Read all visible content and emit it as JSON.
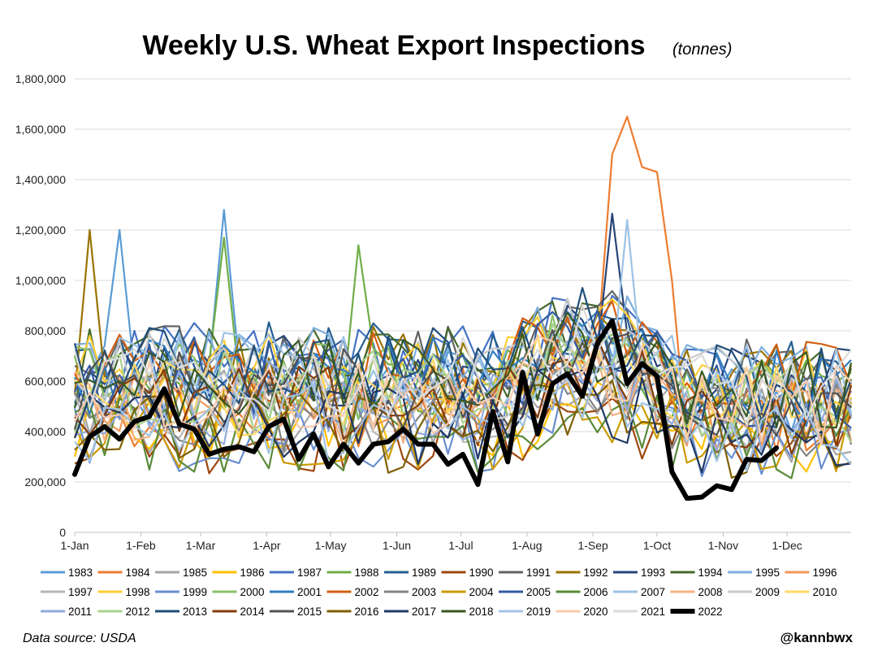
{
  "chart_data": {
    "type": "line",
    "title": "Weekly U.S. Wheat Export Inspections",
    "subtitle": "(tonnes)",
    "ylim": [
      0,
      1800000
    ],
    "y_ticks": [
      "0",
      "200,000",
      "400,000",
      "600,000",
      "800,000",
      "1,000,000",
      "1,200,000",
      "1,400,000",
      "1,600,000",
      "1,800,000"
    ],
    "y_tick_values": [
      0,
      200000,
      400000,
      600000,
      800000,
      1000000,
      1200000,
      1400000,
      1600000,
      1800000
    ],
    "x_ticks": [
      "1-Jan",
      "1-Feb",
      "1-Mar",
      "1-Apr",
      "1-May",
      "1-Jun",
      "1-Jul",
      "1-Aug",
      "1-Sep",
      "1-Oct",
      "1-Nov",
      "1-Dec"
    ],
    "x_tick_weeks": [
      0,
      4.43,
      8.43,
      12.86,
      17.14,
      21.57,
      25.86,
      30.29,
      34.71,
      39,
      43.43,
      47.71
    ],
    "weeks_shown": 53,
    "highlight": {
      "name": "2022",
      "color": "#000000",
      "values": [
        230000,
        380000,
        420000,
        370000,
        440000,
        460000,
        570000,
        430000,
        410000,
        310000,
        330000,
        340000,
        320000,
        420000,
        450000,
        290000,
        390000,
        260000,
        350000,
        275000,
        350000,
        360000,
        410000,
        350000,
        350000,
        270000,
        310000,
        190000,
        480000,
        280000,
        635000,
        390000,
        590000,
        630000,
        540000,
        750000,
        840000,
        590000,
        670000,
        620000,
        240000,
        135000,
        140000,
        185000,
        170000,
        290000,
        285000,
        335000
      ]
    },
    "series": [
      {
        "name": "1983",
        "color": "#5B9BD5"
      },
      {
        "name": "1984",
        "color": "#ED7D31"
      },
      {
        "name": "1985",
        "color": "#A5A5A5"
      },
      {
        "name": "1986",
        "color": "#FFC000"
      },
      {
        "name": "1987",
        "color": "#4472C4"
      },
      {
        "name": "1988",
        "color": "#70AD47"
      },
      {
        "name": "1989",
        "color": "#255E91"
      },
      {
        "name": "1990",
        "color": "#9E480E"
      },
      {
        "name": "1991",
        "color": "#636363"
      },
      {
        "name": "1992",
        "color": "#997300"
      },
      {
        "name": "1993",
        "color": "#264478"
      },
      {
        "name": "1994",
        "color": "#43682B"
      },
      {
        "name": "1995",
        "color": "#7CAFDD"
      },
      {
        "name": "1996",
        "color": "#F1975A"
      },
      {
        "name": "1997",
        "color": "#B7B7B7"
      },
      {
        "name": "1998",
        "color": "#FFCD33"
      },
      {
        "name": "1999",
        "color": "#698ED0"
      },
      {
        "name": "2000",
        "color": "#8CC168"
      },
      {
        "name": "2001",
        "color": "#327DC2"
      },
      {
        "name": "2002",
        "color": "#D26012"
      },
      {
        "name": "2003",
        "color": "#848484"
      },
      {
        "name": "2004",
        "color": "#CC9A00"
      },
      {
        "name": "2005",
        "color": "#335AA1"
      },
      {
        "name": "2006",
        "color": "#5A8A39"
      },
      {
        "name": "2007",
        "color": "#9DC3E6"
      },
      {
        "name": "2008",
        "color": "#F4B183"
      },
      {
        "name": "2009",
        "color": "#C9C9C9"
      },
      {
        "name": "2010",
        "color": "#FFD966"
      },
      {
        "name": "2011",
        "color": "#8FAADC"
      },
      {
        "name": "2012",
        "color": "#A9D18E"
      },
      {
        "name": "2013",
        "color": "#1F4E79"
      },
      {
        "name": "2014",
        "color": "#843C0C"
      },
      {
        "name": "2015",
        "color": "#525252"
      },
      {
        "name": "2016",
        "color": "#7F6000"
      },
      {
        "name": "2017",
        "color": "#203864"
      },
      {
        "name": "2018",
        "color": "#385723"
      },
      {
        "name": "2019",
        "color": "#A2C4E3"
      },
      {
        "name": "2020",
        "color": "#F8CBAD"
      },
      {
        "name": "2021",
        "color": "#DBDBDB"
      },
      {
        "name": "2022",
        "color": "#000000"
      }
    ],
    "annotations": {
      "source": "Data source: USDA",
      "handle": "@kannbwx"
    }
  }
}
